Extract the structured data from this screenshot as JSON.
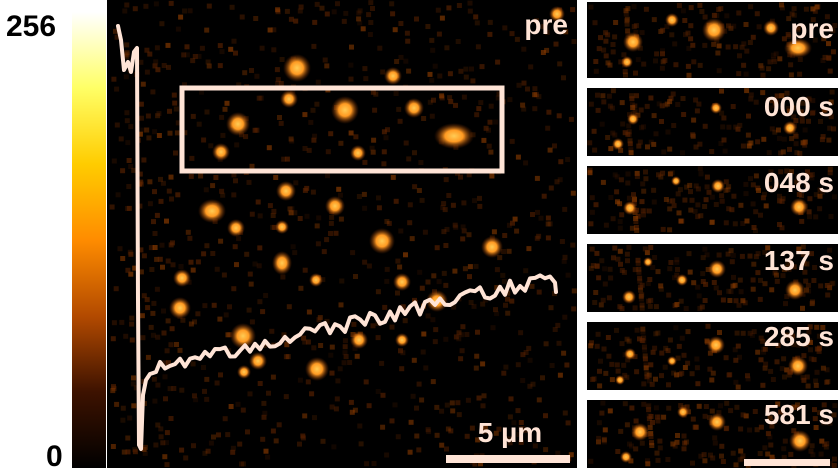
{
  "colorbar": {
    "max_label": "256",
    "min_label": "0",
    "colors": [
      "#ffffff",
      "#ffff66",
      "#ffcc00",
      "#ff8c00",
      "#b34a00",
      "#3d1200",
      "#000000"
    ]
  },
  "main_panel": {
    "label": "pre",
    "scale_bar_label": "5 µm",
    "trace_color": "#ffe4d6",
    "box_color": "#ffe4d6"
  },
  "time_panels": [
    {
      "label": "pre"
    },
    {
      "label": "000 s"
    },
    {
      "label": "048 s"
    },
    {
      "label": "137 s"
    },
    {
      "label": "285 s"
    },
    {
      "label": "581 s"
    }
  ],
  "colors": {
    "spot_core": "#ffaa33",
    "spot_edge": "#cc5500",
    "background": "#000000",
    "label_text": "#ffe4d6"
  }
}
